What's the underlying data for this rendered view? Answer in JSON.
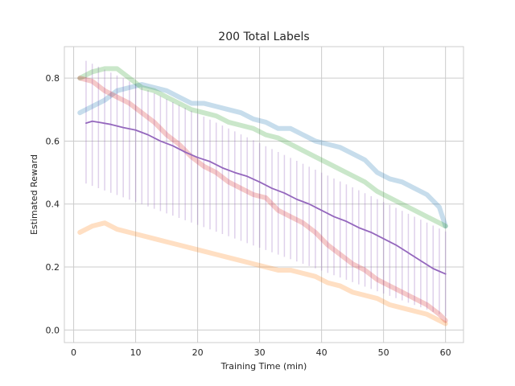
{
  "chart_data": {
    "type": "line",
    "title": "200 Total Labels",
    "xlabel": "Training Time (min)",
    "ylabel": "Estimated Reward",
    "xlim": [
      -1.5,
      62.9
    ],
    "ylim": [
      -0.04,
      0.9
    ],
    "xticks": [
      0,
      10,
      20,
      30,
      40,
      50,
      60
    ],
    "yticks": [
      0.0,
      0.2,
      0.4,
      0.6,
      0.8
    ],
    "grid": true,
    "colors": {
      "blue": "#1f77b4",
      "orange": "#ff7f0e",
      "green": "#2ca02c",
      "red": "#d62728",
      "purple": "#9467bd"
    },
    "series": [
      {
        "color": "#1f77b4",
        "opacity": 0.25,
        "x": [
          1,
          3,
          5,
          7,
          9,
          11,
          13,
          15,
          17,
          19,
          21,
          23,
          25,
          27,
          29,
          31,
          33,
          35,
          37,
          39,
          41,
          43,
          45,
          47,
          49,
          51,
          53,
          55,
          57,
          59,
          60
        ],
        "y": [
          0.69,
          0.71,
          0.73,
          0.76,
          0.77,
          0.78,
          0.77,
          0.76,
          0.74,
          0.72,
          0.72,
          0.71,
          0.7,
          0.69,
          0.67,
          0.66,
          0.64,
          0.64,
          0.62,
          0.6,
          0.59,
          0.58,
          0.56,
          0.54,
          0.5,
          0.48,
          0.47,
          0.45,
          0.43,
          0.39,
          0.33
        ]
      },
      {
        "color": "#ff7f0e",
        "opacity": 0.25,
        "x": [
          1,
          3,
          5,
          7,
          9,
          11,
          13,
          15,
          17,
          19,
          21,
          23,
          25,
          27,
          29,
          31,
          33,
          35,
          37,
          39,
          41,
          43,
          45,
          47,
          49,
          51,
          53,
          55,
          57,
          59,
          60
        ],
        "y": [
          0.31,
          0.33,
          0.34,
          0.32,
          0.31,
          0.3,
          0.29,
          0.28,
          0.27,
          0.26,
          0.25,
          0.24,
          0.23,
          0.22,
          0.21,
          0.2,
          0.19,
          0.19,
          0.18,
          0.17,
          0.15,
          0.14,
          0.12,
          0.11,
          0.1,
          0.08,
          0.07,
          0.06,
          0.05,
          0.03,
          0.02
        ]
      },
      {
        "color": "#2ca02c",
        "opacity": 0.25,
        "x": [
          1,
          3,
          5,
          7,
          9,
          11,
          13,
          15,
          17,
          19,
          21,
          23,
          25,
          27,
          29,
          31,
          33,
          35,
          37,
          39,
          41,
          43,
          45,
          47,
          49,
          51,
          53,
          55,
          57,
          59,
          60
        ],
        "y": [
          0.8,
          0.82,
          0.83,
          0.83,
          0.8,
          0.77,
          0.76,
          0.74,
          0.72,
          0.7,
          0.69,
          0.68,
          0.66,
          0.65,
          0.64,
          0.62,
          0.61,
          0.59,
          0.57,
          0.55,
          0.53,
          0.51,
          0.49,
          0.47,
          0.44,
          0.42,
          0.4,
          0.38,
          0.36,
          0.34,
          0.33
        ]
      },
      {
        "color": "#d62728",
        "opacity": 0.25,
        "x": [
          1,
          3,
          5,
          7,
          9,
          11,
          13,
          15,
          17,
          19,
          21,
          23,
          25,
          27,
          29,
          31,
          33,
          35,
          37,
          39,
          41,
          43,
          45,
          47,
          49,
          51,
          53,
          55,
          57,
          59,
          60
        ],
        "y": [
          0.8,
          0.79,
          0.76,
          0.74,
          0.72,
          0.69,
          0.66,
          0.62,
          0.59,
          0.55,
          0.52,
          0.5,
          0.47,
          0.45,
          0.43,
          0.42,
          0.38,
          0.36,
          0.34,
          0.31,
          0.27,
          0.24,
          0.21,
          0.19,
          0.16,
          0.14,
          0.12,
          0.1,
          0.08,
          0.05,
          0.03
        ]
      },
      {
        "color": "#9467bd",
        "opacity": 1.0,
        "x": [
          2,
          3,
          4,
          6,
          8,
          10,
          12,
          14,
          16,
          18,
          20,
          22,
          24,
          26,
          28,
          30,
          32,
          34,
          36,
          38,
          40,
          42,
          44,
          46,
          48,
          50,
          52,
          54,
          56,
          58,
          60
        ],
        "y": [
          0.657,
          0.663,
          0.66,
          0.653,
          0.643,
          0.635,
          0.62,
          0.6,
          0.585,
          0.565,
          0.548,
          0.535,
          0.515,
          0.5,
          0.488,
          0.47,
          0.45,
          0.435,
          0.415,
          0.4,
          0.38,
          0.36,
          0.345,
          0.325,
          0.31,
          0.29,
          0.27,
          0.245,
          0.22,
          0.195,
          0.178
        ]
      }
    ],
    "error_bars": {
      "color": "#9467bd",
      "opacity": 0.3,
      "x_start": 2,
      "x_end": 60,
      "step": 1,
      "center_start": 0.66,
      "center_end": 0.178,
      "halfwidth_start": 0.195,
      "halfwidth_end": 0.135
    }
  }
}
